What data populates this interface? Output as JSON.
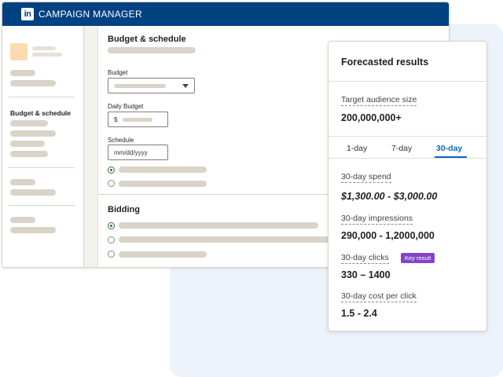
{
  "app": {
    "logo_text": "in",
    "title": "CAMPAIGN MANAGER"
  },
  "sidebar": {
    "active_item": "Budget & schedule"
  },
  "form": {
    "budget_section_title": "Budget & schedule",
    "budget_label": "Budget",
    "daily_budget_label": "Daily Budget",
    "currency_symbol": "$",
    "schedule_label": "Schedule",
    "date_placeholder": "mm/dd/yyyy",
    "bidding_section_title": "Bidding"
  },
  "forecast": {
    "title": "Forecasted results",
    "audience_label": "Target audience size",
    "audience_value": "200,000,000+",
    "tabs": [
      "1-day",
      "7-day",
      "30-day"
    ],
    "active_tab": "30-day",
    "spend_label": "30-day spend",
    "spend_value": "$1,300.00 - $3,000.00",
    "impressions_label": "30-day impressions",
    "impressions_value": "290,000 - 1,2000,000",
    "clicks_label": "30-day clicks",
    "clicks_badge": "Key result",
    "clicks_value": "330 – 1400",
    "cpc_label": "30-day cost per click",
    "cpc_value": "1.5 - 2.4"
  },
  "colors": {
    "brand": "#004182",
    "accent": "#0a66c2",
    "badge": "#8344cc",
    "radio": "#3b6c3a"
  }
}
